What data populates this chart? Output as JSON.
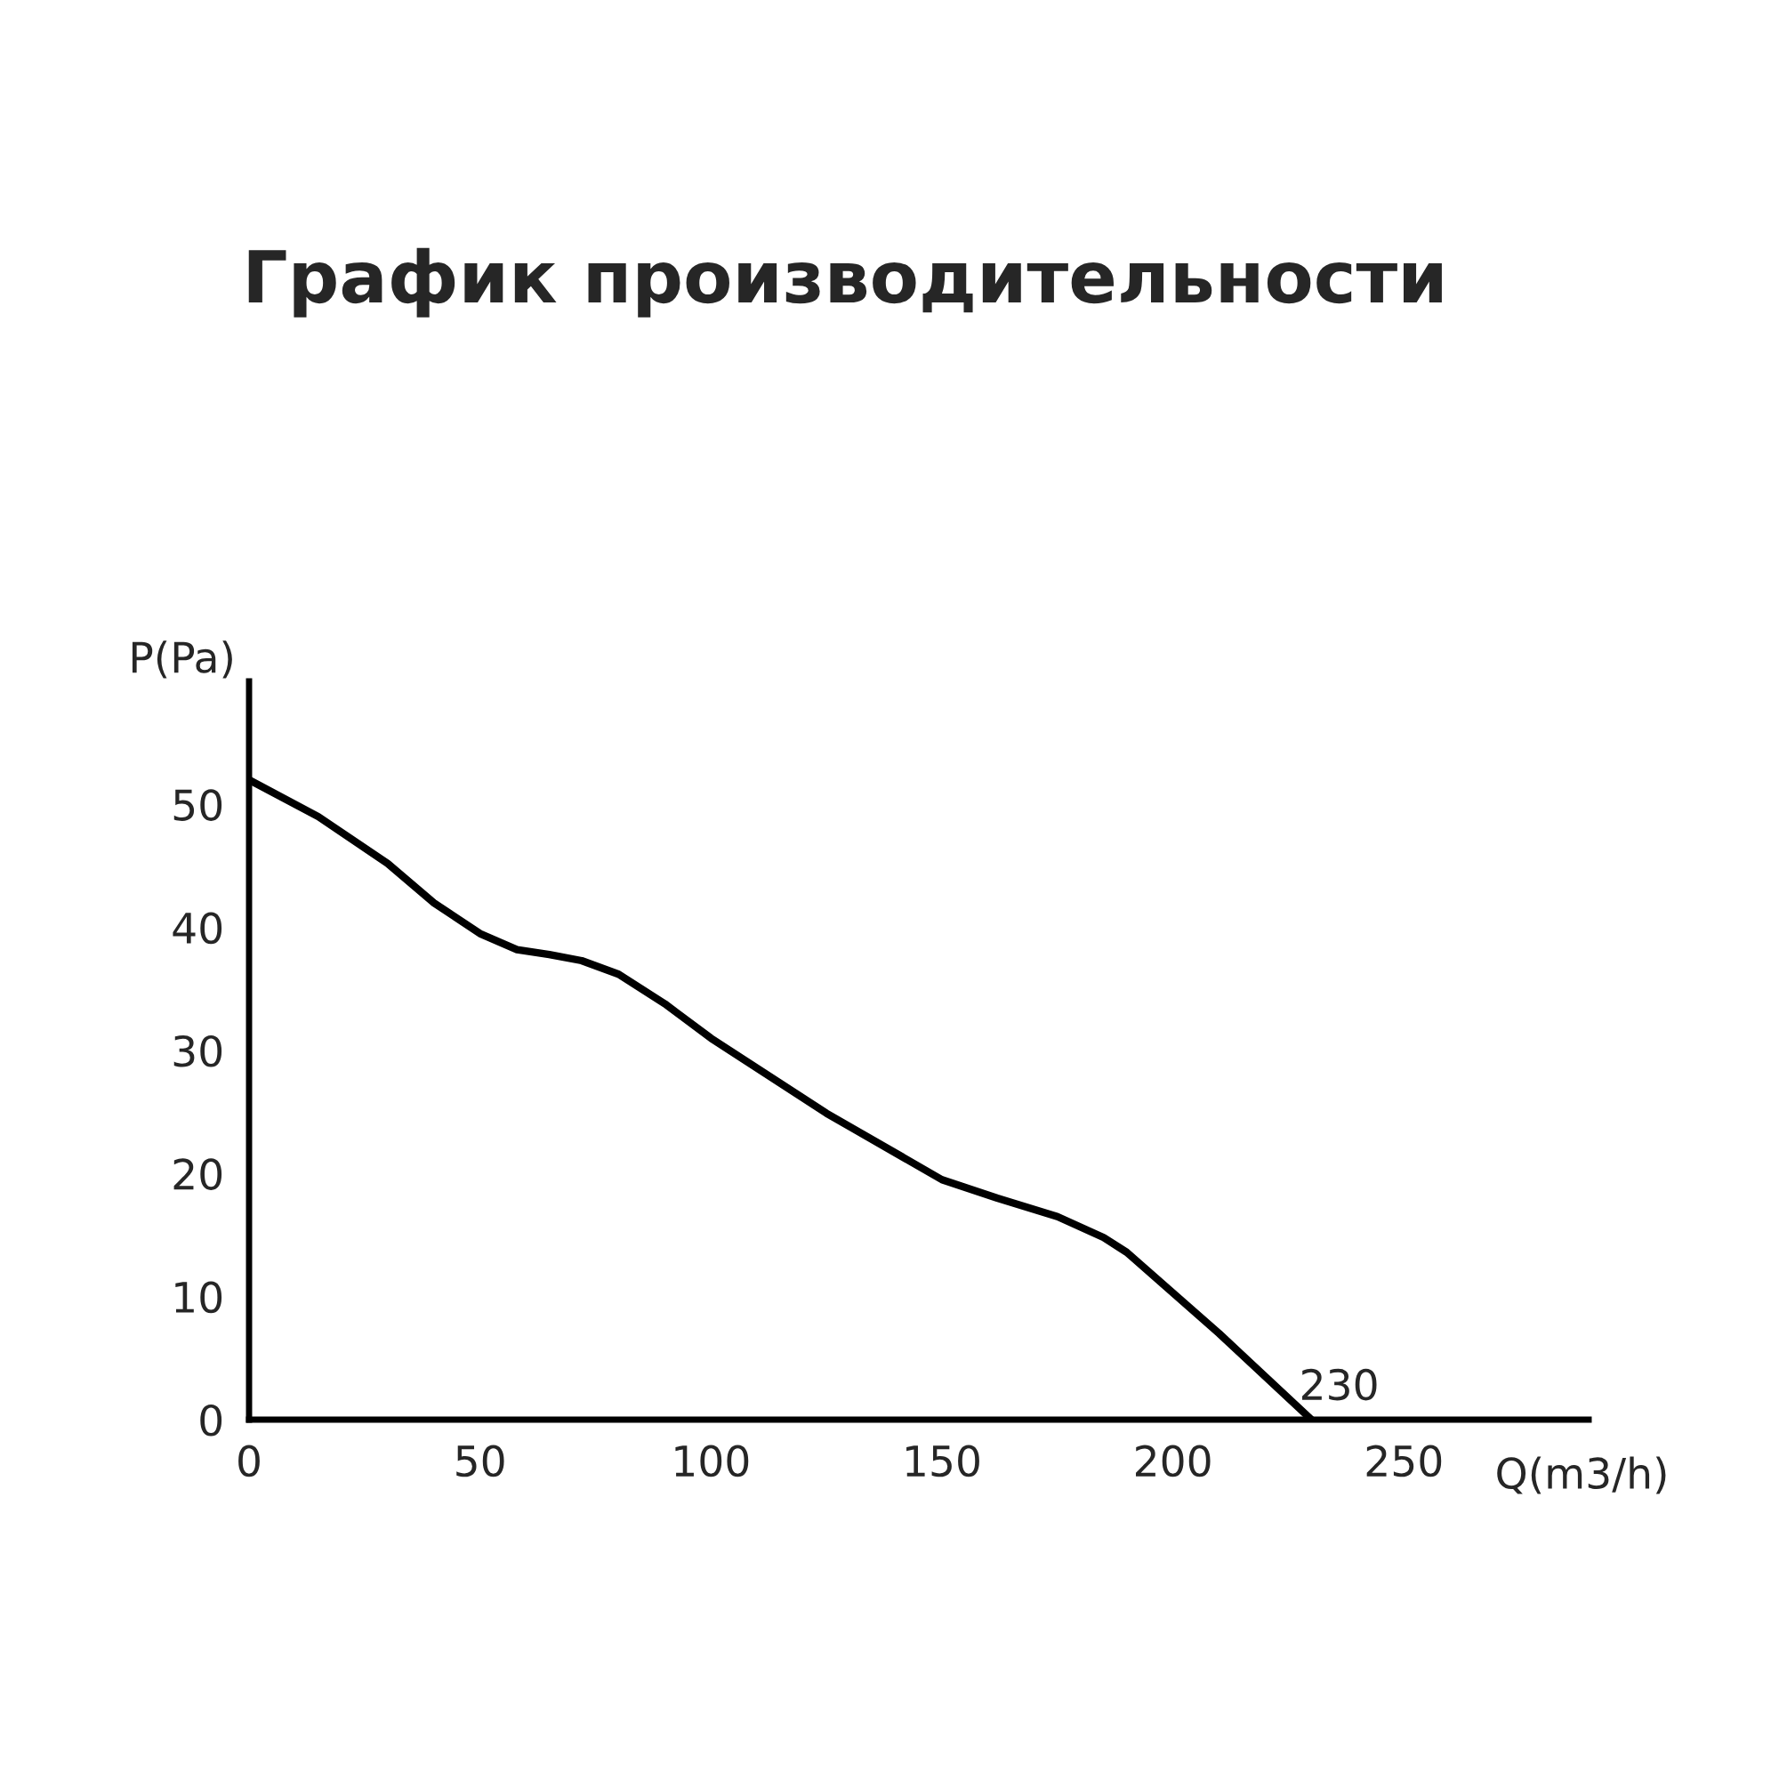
{
  "chart_data": {
    "type": "line",
    "title": "График производительности",
    "xlabel": "Q(m3/h)",
    "ylabel": "P(Pa)",
    "x": [
      0,
      15,
      30,
      40,
      50,
      58,
      65,
      72,
      80,
      90,
      100,
      125,
      150,
      162,
      175,
      185,
      190,
      210,
      230
    ],
    "series": [
      {
        "color": "#000000",
        "values": [
          52,
          49,
          45.2,
          42,
          39.5,
          38.2,
          37.8,
          37.3,
          36.2,
          33.8,
          31,
          24.9,
          19.5,
          18,
          16.5,
          14.8,
          13.6,
          7,
          0
        ]
      }
    ],
    "xlim": [
      0,
      290
    ],
    "ylim": [
      0,
      60
    ],
    "xticks": [
      0,
      50,
      100,
      150,
      200,
      250
    ],
    "yticks": [
      0,
      10,
      20,
      30,
      40,
      50
    ],
    "annotations": [
      {
        "text": "230",
        "x": 230,
        "y": 0
      }
    ],
    "grid": false
  }
}
